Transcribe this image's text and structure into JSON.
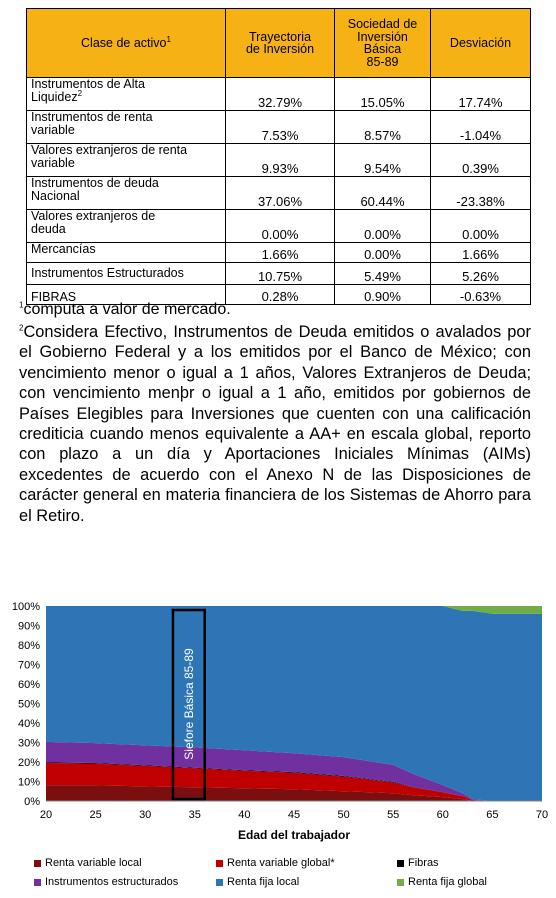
{
  "table": {
    "headers": {
      "asset": "Clase de activo",
      "asset_sup": "1",
      "trajectory": [
        "Trayectoria",
        "de Inversión"
      ],
      "siefore": [
        "Sociedad de",
        "Inversión",
        "Básica",
        "85-89"
      ],
      "deviation": "Desviación"
    },
    "rows": [
      {
        "label": [
          "Instrumentos de Alta",
          "Liquidez"
        ],
        "sup": "2",
        "trajectory": "32.79%",
        "siefore": "15.05%",
        "deviation": "17.74%"
      },
      {
        "label": [
          "Instrumentos de renta",
          "variable"
        ],
        "trajectory": "7.53%",
        "siefore": "8.57%",
        "deviation": "-1.04%"
      },
      {
        "label": [
          "Valores extranjeros de renta",
          "variable"
        ],
        "trajectory": "9.93%",
        "siefore": "9.54%",
        "deviation": "0.39%"
      },
      {
        "label": [
          "Instrumentos de deuda",
          "Nacional"
        ],
        "trajectory": "37.06%",
        "siefore": "60.44%",
        "deviation": "-23.38%"
      },
      {
        "label": [
          "Valores extranjeros de",
          "deuda"
        ],
        "trajectory": "0.00%",
        "siefore": "0.00%",
        "deviation": "0.00%"
      },
      {
        "label": [
          "Mercancías"
        ],
        "trajectory": "1.66%",
        "siefore": "0.00%",
        "deviation": "1.66%"
      },
      {
        "label": [
          "Instrumentos Estructurados"
        ],
        "trajectory": "10.75%",
        "siefore": "5.49%",
        "deviation": "5.26%"
      },
      {
        "label": [
          "FIBRAS"
        ],
        "trajectory": "0.28%",
        "siefore": "0.90%",
        "deviation": "-0.63%"
      }
    ]
  },
  "notes": {
    "note1_num": "1",
    "note1": "computa a valor de mercado.",
    "note2_num": "2",
    "note2": "Considera Efectivo, Instrumentos de Deuda emitidos o avalados por el Gobierno Federal y a los emitidos por el Banco de México; con vencimiento menor o igual a 1 años, Valores Extranjeros de Deuda; con vencimiento menþr o igual a 1 año, emitidos por gobiernos de Países Elegibles para Inversiones que cuenten con una calificación crediticia cuando menos equivalente a AA+ en escala global, reporto con plazo a un día y Aportaciones Iniciales Mínimas (AIMs) excedentes de acuerdo con el Anexo N de las Disposiciones de carácter general en materia financiera de los Sistemas de Ahorro para el Retiro."
  },
  "chart_data": {
    "type": "area",
    "stacked": true,
    "xlabel": "Edad del trabajador",
    "ylabel": "",
    "xlim": [
      20,
      70
    ],
    "ylim": [
      0,
      100
    ],
    "xticks": [
      20,
      25,
      30,
      35,
      40,
      45,
      50,
      55,
      60,
      65,
      70
    ],
    "yticks": [
      "0%",
      "10%",
      "20%",
      "30%",
      "40%",
      "50%",
      "60%",
      "70%",
      "80%",
      "90%",
      "100%"
    ],
    "x": [
      20,
      25,
      30,
      35,
      40,
      45,
      50,
      55,
      57,
      60,
      62,
      63,
      65,
      70
    ],
    "series": [
      {
        "name": "Renta variable local",
        "color": "#7b0f0f",
        "values": [
          8,
          8,
          7.5,
          7,
          6.5,
          6,
          5,
          4,
          3,
          2,
          1,
          0,
          0,
          0
        ]
      },
      {
        "name": "Renta variable global*",
        "color": "#c00000",
        "values": [
          11.5,
          11.2,
          10.5,
          9.8,
          9,
          8.5,
          7.5,
          5.5,
          4,
          2.5,
          1.5,
          0.5,
          0,
          0
        ]
      },
      {
        "name": "Fibras",
        "color": "#000000",
        "values": [
          0.3,
          0.3,
          0.3,
          0.3,
          0.3,
          0.3,
          0.3,
          0.3,
          0.2,
          0.1,
          0,
          0,
          0,
          0
        ]
      },
      {
        "name": "Instrumentos estructurados",
        "color": "#7030a0",
        "values": [
          10.5,
          10.2,
          10.2,
          10.4,
          10.2,
          9.7,
          9.7,
          8.7,
          6.8,
          3.6,
          1.5,
          0.5,
          0,
          0
        ]
      },
      {
        "name": "Renta fija local",
        "color": "#2e75b6",
        "values": [
          69.7,
          70.3,
          71.5,
          72.5,
          74,
          75.5,
          77.5,
          81.5,
          86,
          91.8,
          93.5,
          96.5,
          96,
          96
        ]
      },
      {
        "name": "Renta fija global",
        "color": "#70ad47",
        "values": [
          0,
          0,
          0,
          0,
          0,
          0,
          0,
          0,
          0,
          0,
          2.5,
          2.5,
          4,
          4
        ]
      }
    ],
    "annotation": {
      "label": "Siefore Básica 85-89",
      "x_range": [
        33,
        36
      ]
    },
    "legend_position": "bottom",
    "grid": false
  }
}
